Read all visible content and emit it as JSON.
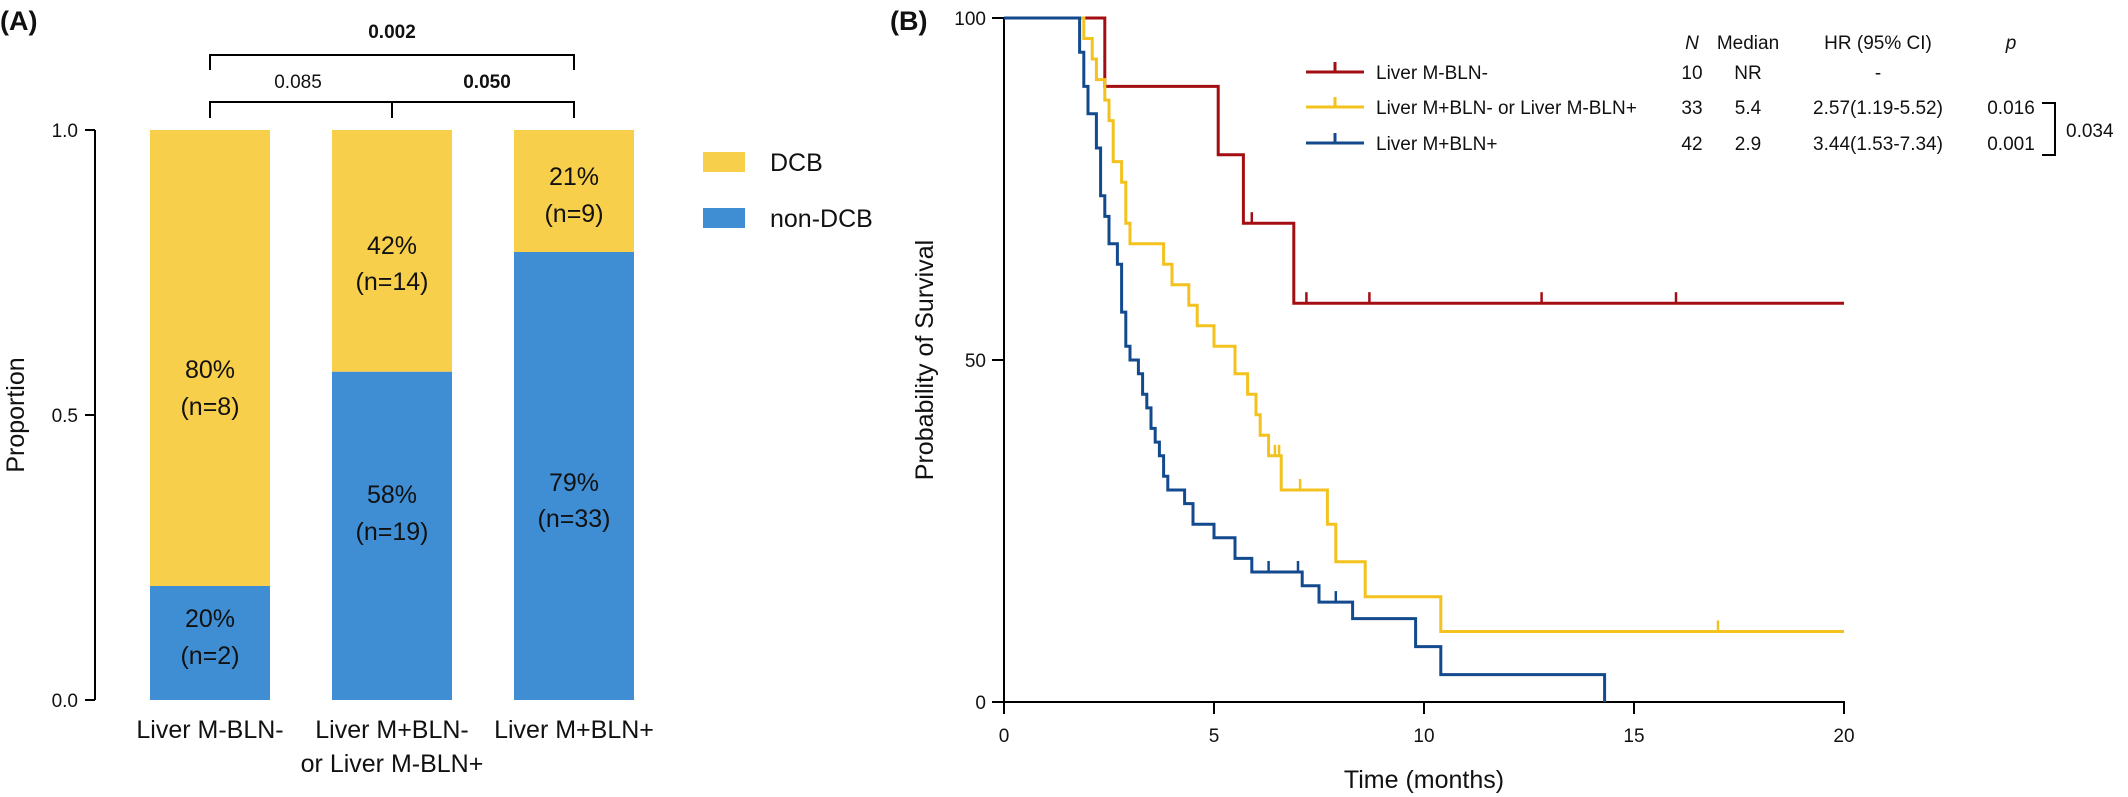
{
  "colors": {
    "dcb": "#F8CF4A",
    "non_dcb": "#3F8ED4",
    "km_neg": "#A30E12",
    "km_mixed": "#F3C21E",
    "km_pos": "#134A8E"
  },
  "panel_a": {
    "label": "(A)",
    "ylabel": "Proportion",
    "yticks": [
      "0.0",
      "0.5",
      "1.0"
    ],
    "legend": {
      "dcb": "DCB",
      "non_dcb": "non-DCB"
    },
    "categories": [
      {
        "line1": "Liver M-BLN-",
        "line2": ""
      },
      {
        "line1": "Liver M+BLN-",
        "line2": "or Liver M-BLN+"
      },
      {
        "line1": "Liver M+BLN+",
        "line2": ""
      }
    ],
    "bars": [
      {
        "dcb_pct": "80%",
        "dcb_n": "(n=8)",
        "non_pct": "20%",
        "non_n": "(n=2)"
      },
      {
        "dcb_pct": "42%",
        "dcb_n": "(n=14)",
        "non_pct": "58%",
        "non_n": "(n=19)"
      },
      {
        "dcb_pct": "21%",
        "dcb_n": "(n=9)",
        "non_pct": "79%",
        "non_n": "(n=33)"
      }
    ],
    "pvalues": {
      "g1_g2": "0.085",
      "g2_g3": "0.050",
      "g1_g3": "0.002"
    }
  },
  "panel_b": {
    "label": "(B)",
    "ylabel": "Probability of Survival",
    "xlabel": "Time (months)",
    "xticks": [
      "0",
      "5",
      "10",
      "15",
      "20"
    ],
    "yticks": [
      "0",
      "50",
      "100"
    ],
    "table_headers": {
      "n": "N",
      "median": "Median",
      "hr": "HR (95% CI)",
      "p": "p"
    },
    "rows": [
      {
        "name": "Liver M-BLN-",
        "n": "10",
        "median": "NR",
        "hr": "-",
        "p": ""
      },
      {
        "name": "Liver M+BLN- or Liver M-BLN+",
        "n": "33",
        "median": "5.4",
        "hr": "2.57(1.19-5.52)",
        "p": "0.016"
      },
      {
        "name": "Liver M+BLN+",
        "n": "42",
        "median": "2.9",
        "hr": "3.44(1.53-7.34)",
        "p": "0.001"
      }
    ],
    "bracket_p": "0.034"
  },
  "chart_data": [
    {
      "type": "bar",
      "stacked": true,
      "categories": [
        "Liver M-BLN-",
        "Liver M+BLN- or Liver M-BLN+",
        "Liver M+BLN+"
      ],
      "series": [
        {
          "name": "non-DCB",
          "values": [
            0.2,
            0.576,
            0.786
          ],
          "counts": [
            2,
            19,
            33
          ]
        },
        {
          "name": "DCB",
          "values": [
            0.8,
            0.424,
            0.214
          ],
          "counts": [
            8,
            14,
            9
          ]
        }
      ],
      "ylabel": "Proportion",
      "ylim": [
        0,
        1
      ],
      "legend": "right",
      "comparisons": [
        {
          "groups": [
            0,
            1
          ],
          "p": "0.085"
        },
        {
          "groups": [
            1,
            2
          ],
          "p": "0.050"
        },
        {
          "groups": [
            0,
            2
          ],
          "p": "0.002"
        }
      ]
    },
    {
      "type": "line",
      "step": true,
      "xlabel": "Time (months)",
      "ylabel": "Probability of Survival",
      "xlim": [
        0,
        20
      ],
      "ylim": [
        0,
        100
      ],
      "series": [
        {
          "name": "Liver M-BLN-",
          "points": [
            [
              0,
              100
            ],
            [
              2.4,
              100
            ],
            [
              2.4,
              90
            ],
            [
              5.1,
              90
            ],
            [
              5.1,
              80
            ],
            [
              5.7,
              80
            ],
            [
              5.7,
              70
            ],
            [
              6.9,
              70
            ],
            [
              6.9,
              58.3
            ],
            [
              20,
              58.3
            ]
          ],
          "censor": [
            [
              5.9,
              70
            ],
            [
              7.2,
              58.3
            ],
            [
              8.7,
              58.3
            ],
            [
              12.8,
              58.3
            ],
            [
              16.0,
              58.3
            ]
          ]
        },
        {
          "name": "Liver M+BLN- or Liver M-BLN+",
          "points": [
            [
              0,
              100
            ],
            [
              1.9,
              100
            ],
            [
              1.9,
              97
            ],
            [
              2.1,
              97
            ],
            [
              2.1,
              94
            ],
            [
              2.2,
              94
            ],
            [
              2.2,
              91
            ],
            [
              2.4,
              91
            ],
            [
              2.4,
              88
            ],
            [
              2.5,
              88
            ],
            [
              2.5,
              85
            ],
            [
              2.6,
              85
            ],
            [
              2.6,
              79
            ],
            [
              2.8,
              79
            ],
            [
              2.8,
              76
            ],
            [
              2.9,
              76
            ],
            [
              2.9,
              70
            ],
            [
              3.0,
              70
            ],
            [
              3.0,
              67
            ],
            [
              3.8,
              67
            ],
            [
              3.8,
              64
            ],
            [
              4.0,
              64
            ],
            [
              4.0,
              61
            ],
            [
              4.4,
              61
            ],
            [
              4.4,
              58
            ],
            [
              4.6,
              58
            ],
            [
              4.6,
              55
            ],
            [
              5.0,
              55
            ],
            [
              5.0,
              52
            ],
            [
              5.5,
              52
            ],
            [
              5.5,
              48
            ],
            [
              5.8,
              48
            ],
            [
              5.8,
              45
            ],
            [
              6.0,
              45
            ],
            [
              6.0,
              42
            ],
            [
              6.1,
              42
            ],
            [
              6.1,
              39
            ],
            [
              6.3,
              39
            ],
            [
              6.3,
              36
            ],
            [
              6.6,
              36
            ],
            [
              6.6,
              31
            ],
            [
              7.7,
              31
            ],
            [
              7.7,
              26
            ],
            [
              7.9,
              26
            ],
            [
              7.9,
              20.5
            ],
            [
              8.6,
              20.5
            ],
            [
              8.6,
              15.4
            ],
            [
              10.4,
              15.4
            ],
            [
              10.4,
              10.3
            ],
            [
              20,
              10.3
            ]
          ],
          "censor": [
            [
              6.45,
              36
            ],
            [
              6.55,
              36
            ],
            [
              7.05,
              31
            ],
            [
              17.0,
              10.3
            ]
          ]
        },
        {
          "name": "Liver M+BLN+",
          "points": [
            [
              0,
              100
            ],
            [
              1.8,
              100
            ],
            [
              1.8,
              95
            ],
            [
              1.9,
              95
            ],
            [
              1.9,
              90
            ],
            [
              2.0,
              90
            ],
            [
              2.0,
              86
            ],
            [
              2.2,
              86
            ],
            [
              2.2,
              81
            ],
            [
              2.3,
              81
            ],
            [
              2.3,
              74
            ],
            [
              2.4,
              74
            ],
            [
              2.4,
              71
            ],
            [
              2.5,
              71
            ],
            [
              2.5,
              67
            ],
            [
              2.7,
              67
            ],
            [
              2.7,
              64
            ],
            [
              2.8,
              64
            ],
            [
              2.8,
              57
            ],
            [
              2.9,
              57
            ],
            [
              2.9,
              52
            ],
            [
              3.0,
              52
            ],
            [
              3.0,
              50
            ],
            [
              3.2,
              50
            ],
            [
              3.2,
              48
            ],
            [
              3.3,
              48
            ],
            [
              3.3,
              45
            ],
            [
              3.4,
              45
            ],
            [
              3.4,
              43
            ],
            [
              3.5,
              43
            ],
            [
              3.5,
              40
            ],
            [
              3.6,
              40
            ],
            [
              3.6,
              38
            ],
            [
              3.7,
              38
            ],
            [
              3.7,
              36
            ],
            [
              3.8,
              36
            ],
            [
              3.8,
              33
            ],
            [
              3.9,
              33
            ],
            [
              3.9,
              31
            ],
            [
              4.3,
              31
            ],
            [
              4.3,
              29
            ],
            [
              4.5,
              29
            ],
            [
              4.5,
              26
            ],
            [
              5.0,
              26
            ],
            [
              5.0,
              24
            ],
            [
              5.5,
              24
            ],
            [
              5.5,
              21
            ],
            [
              5.9,
              21
            ],
            [
              5.9,
              19
            ],
            [
              7.1,
              19
            ],
            [
              7.1,
              17
            ],
            [
              7.5,
              17
            ],
            [
              7.5,
              14.6
            ],
            [
              8.3,
              14.6
            ],
            [
              8.3,
              12.2
            ],
            [
              9.8,
              12.2
            ],
            [
              9.8,
              8.1
            ],
            [
              10.4,
              8.1
            ],
            [
              10.4,
              4
            ],
            [
              14.3,
              4
            ],
            [
              14.3,
              0
            ]
          ],
          "censor": [
            [
              6.3,
              19
            ],
            [
              7.0,
              19
            ],
            [
              7.9,
              14.6
            ]
          ]
        }
      ]
    }
  ]
}
